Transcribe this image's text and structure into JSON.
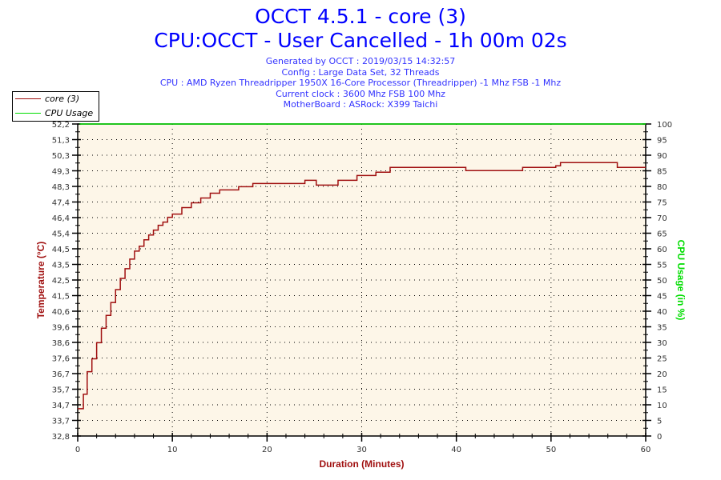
{
  "header": {
    "title": "OCCT 4.5.1 - core (3)",
    "subtitle": "CPU:OCCT - User Cancelled - 1h 00m 02s",
    "info_lines": [
      "Generated by OCCT : 2019/03/15 14:32:57",
      "Config : Large Data Set, 32 Threads",
      "CPU : AMD Ryzen Threadripper 1950X 16-Core Processor (Threadripper) -1 Mhz FSB -1 Mhz",
      "Current clock : 3600 Mhz FSB 100 Mhz",
      "MotherBoard : ASRock: X399 Taichi"
    ]
  },
  "chart_data": {
    "type": "line",
    "step": true,
    "xlabel": "Duration (Minutes)",
    "ylabel": "Temperature (°C)",
    "y2label": "CPU Usage (in %)",
    "xlim": [
      0,
      60
    ],
    "ylim": [
      32.8,
      52.2
    ],
    "y2lim": [
      0,
      100
    ],
    "x_ticks": [
      "0",
      "10",
      "20",
      "30",
      "40",
      "50",
      "60"
    ],
    "y_ticks": [
      "32,8",
      "33,7",
      "34,7",
      "35,7",
      "36,7",
      "37,6",
      "38,6",
      "39,6",
      "40,6",
      "41,5",
      "42,5",
      "43,5",
      "44,5",
      "45,4",
      "46,4",
      "47,4",
      "48,3",
      "49,3",
      "50,3",
      "51,3",
      "52,2"
    ],
    "y2_ticks": [
      "0",
      "5",
      "10",
      "15",
      "20",
      "25",
      "30",
      "35",
      "40",
      "45",
      "50",
      "55",
      "60",
      "65",
      "70",
      "75",
      "80",
      "85",
      "90",
      "95",
      "100"
    ],
    "grid": true,
    "legend_position": "top-left",
    "colors": {
      "temperature": "#a01010",
      "cpu_usage": "#00dd00",
      "plot_bg": "#fdf6e8",
      "axis_label": "#a01010"
    },
    "series": [
      {
        "name": "core (3)",
        "axis": "left",
        "x": [
          0,
          0.6,
          1,
          1.5,
          2,
          2.5,
          3,
          3.5,
          4,
          4.5,
          5,
          5.5,
          6,
          6.5,
          7,
          7.5,
          8,
          8.5,
          9,
          9.5,
          10,
          11,
          12,
          13,
          14,
          15,
          17,
          18.5,
          24,
          25.2,
          27.5,
          29.5,
          31.5,
          33,
          41,
          41.3,
          47,
          50.5,
          51,
          57,
          60
        ],
        "y": [
          34.5,
          35.4,
          36.8,
          37.6,
          38.6,
          39.5,
          40.3,
          41.1,
          41.9,
          42.6,
          43.2,
          43.8,
          44.3,
          44.6,
          45.0,
          45.3,
          45.6,
          45.9,
          46.1,
          46.4,
          46.6,
          47.0,
          47.3,
          47.6,
          47.9,
          48.1,
          48.3,
          48.5,
          48.7,
          48.4,
          48.7,
          49.0,
          49.2,
          49.5,
          49.3,
          49.3,
          49.5,
          49.6,
          49.8,
          49.5,
          49.5
        ]
      },
      {
        "name": "CPU Usage",
        "axis": "right",
        "x": [
          0.2,
          60
        ],
        "y": [
          100,
          100
        ]
      }
    ]
  }
}
